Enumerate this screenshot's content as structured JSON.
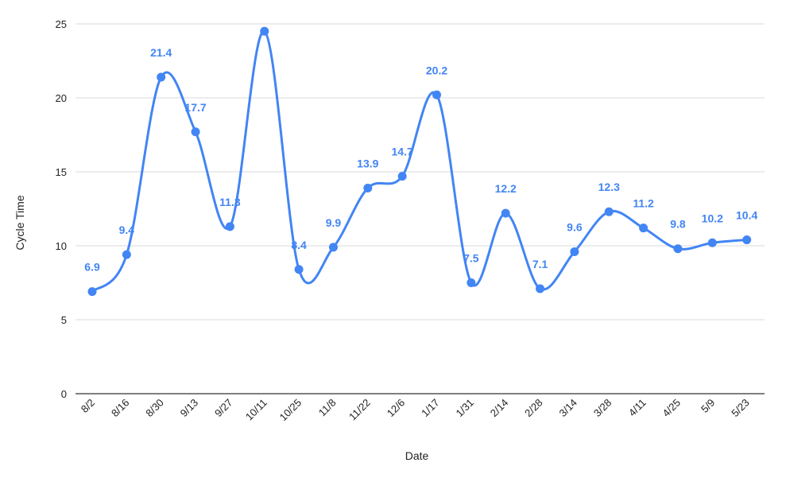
{
  "colors": {
    "series": "#4285f4",
    "grid": "#d9d9d9",
    "axis": "#333333",
    "text": "#222222"
  },
  "chart_data": {
    "type": "line",
    "smooth": true,
    "xlabel": "Date",
    "ylabel": "Cycle Time",
    "ylim": [
      0,
      25
    ],
    "yticks": [
      0,
      5,
      10,
      15,
      20,
      25
    ],
    "grid": true,
    "legend": "none",
    "categories": [
      "8/2",
      "8/16",
      "8/30",
      "9/13",
      "9/27",
      "10/11",
      "10/25",
      "11/8",
      "11/22",
      "12/6",
      "1/17",
      "1/31",
      "2/14",
      "2/28",
      "3/14",
      "3/28",
      "4/11",
      "4/25",
      "5/9",
      "5/23"
    ],
    "series": [
      {
        "values": [
          6.9,
          9.4,
          21.4,
          17.7,
          11.3,
          24.5,
          8.4,
          9.9,
          13.9,
          14.7,
          20.2,
          7.5,
          12.2,
          7.1,
          9.6,
          12.3,
          11.2,
          9.8,
          10.2,
          10.4
        ],
        "labels": [
          "6.9",
          "9.4",
          "21.4",
          "17.7",
          "11.3",
          "",
          "8.4",
          "9.9",
          "13.9",
          "14.7",
          "20.2",
          "7.5",
          "12.2",
          "7.1",
          "9.6",
          "12.3",
          "11.2",
          "9.8",
          "10.2",
          "10.4"
        ]
      }
    ]
  }
}
